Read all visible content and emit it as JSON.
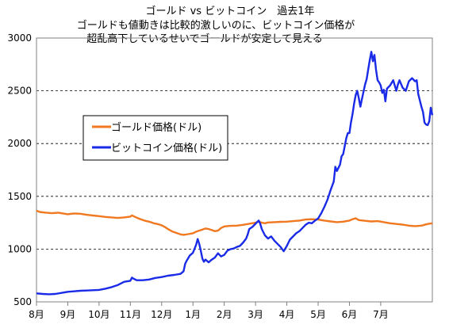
{
  "chart_data": {
    "type": "line",
    "title_lines": [
      "ゴールド vs ビットコイン　過去1年",
      "ゴールドも値動きは比較的激しいのに、ビットコイン価格が",
      "超乱高下しているせいでゴールドが安定して見える"
    ],
    "xlabel": "",
    "ylabel": "",
    "ylim": [
      500,
      3000
    ],
    "yticks": [
      500,
      1000,
      1500,
      2000,
      2500,
      3000
    ],
    "x_range": [
      0,
      12.65
    ],
    "xticks": [
      {
        "label": "8月",
        "x": 0
      },
      {
        "label": "9月",
        "x": 1
      },
      {
        "label": "10月",
        "x": 2
      },
      {
        "label": "11月",
        "x": 3
      },
      {
        "label": "12月",
        "x": 4
      },
      {
        "label": "1月",
        "x": 5
      },
      {
        "label": "2月",
        "x": 6
      },
      {
        "label": "3月",
        "x": 7
      },
      {
        "label": "4月",
        "x": 8
      },
      {
        "label": "5月",
        "x": 9
      },
      {
        "label": "6月",
        "x": 10
      },
      {
        "label": "7月",
        "x": 11
      }
    ],
    "grid": {
      "horizontal": true,
      "style": "dashed"
    },
    "legend_position": "left-middle",
    "series": [
      {
        "name": "ゴールド価格(ドル)",
        "color": "#F07820",
        "points": [
          [
            0,
            1365
          ],
          [
            0.1,
            1352
          ],
          [
            0.3,
            1345
          ],
          [
            0.5,
            1340
          ],
          [
            0.7,
            1345
          ],
          [
            0.9,
            1335
          ],
          [
            1,
            1330
          ],
          [
            1.2,
            1338
          ],
          [
            1.4,
            1335
          ],
          [
            1.6,
            1325
          ],
          [
            1.8,
            1318
          ],
          [
            2,
            1312
          ],
          [
            2.2,
            1305
          ],
          [
            2.4,
            1300
          ],
          [
            2.6,
            1295
          ],
          [
            2.8,
            1300
          ],
          [
            3,
            1308
          ],
          [
            3.05,
            1320
          ],
          [
            3.15,
            1305
          ],
          [
            3.3,
            1285
          ],
          [
            3.45,
            1270
          ],
          [
            3.6,
            1260
          ],
          [
            3.75,
            1245
          ],
          [
            3.9,
            1235
          ],
          [
            4,
            1225
          ],
          [
            4.1,
            1210
          ],
          [
            4.2,
            1190
          ],
          [
            4.35,
            1165
          ],
          [
            4.5,
            1150
          ],
          [
            4.6,
            1140
          ],
          [
            4.7,
            1135
          ],
          [
            4.85,
            1142
          ],
          [
            5,
            1150
          ],
          [
            5.1,
            1165
          ],
          [
            5.2,
            1175
          ],
          [
            5.3,
            1185
          ],
          [
            5.4,
            1195
          ],
          [
            5.5,
            1190
          ],
          [
            5.6,
            1180
          ],
          [
            5.7,
            1170
          ],
          [
            5.8,
            1175
          ],
          [
            5.9,
            1200
          ],
          [
            6,
            1215
          ],
          [
            6.2,
            1220
          ],
          [
            6.4,
            1222
          ],
          [
            6.6,
            1230
          ],
          [
            6.8,
            1240
          ],
          [
            7,
            1250
          ],
          [
            7.1,
            1262
          ],
          [
            7.2,
            1250
          ],
          [
            7.3,
            1245
          ],
          [
            7.4,
            1252
          ],
          [
            7.6,
            1255
          ],
          [
            7.8,
            1258
          ],
          [
            8,
            1260
          ],
          [
            8.2,
            1265
          ],
          [
            8.4,
            1270
          ],
          [
            8.6,
            1280
          ],
          [
            8.8,
            1283
          ],
          [
            9,
            1280
          ],
          [
            9.2,
            1270
          ],
          [
            9.4,
            1262
          ],
          [
            9.6,
            1255
          ],
          [
            9.8,
            1260
          ],
          [
            10,
            1270
          ],
          [
            10.1,
            1283
          ],
          [
            10.2,
            1292
          ],
          [
            10.3,
            1275
          ],
          [
            10.5,
            1268
          ],
          [
            10.7,
            1262
          ],
          [
            10.9,
            1265
          ],
          [
            11.1,
            1255
          ],
          [
            11.3,
            1245
          ],
          [
            11.5,
            1238
          ],
          [
            11.7,
            1232
          ],
          [
            11.9,
            1222
          ],
          [
            12.1,
            1218
          ],
          [
            12.3,
            1222
          ],
          [
            12.5,
            1238
          ],
          [
            12.65,
            1245
          ]
        ]
      },
      {
        "name": "ビットコイン価格(ドル)",
        "color": "#1A2BE8",
        "points": [
          [
            0,
            580
          ],
          [
            0.2,
            575
          ],
          [
            0.4,
            572
          ],
          [
            0.6,
            575
          ],
          [
            0.8,
            585
          ],
          [
            1,
            595
          ],
          [
            1.2,
            600
          ],
          [
            1.4,
            605
          ],
          [
            1.6,
            607
          ],
          [
            1.8,
            610
          ],
          [
            2,
            613
          ],
          [
            2.2,
            625
          ],
          [
            2.4,
            640
          ],
          [
            2.6,
            660
          ],
          [
            2.8,
            690
          ],
          [
            3,
            700
          ],
          [
            3.05,
            730
          ],
          [
            3.1,
            720
          ],
          [
            3.2,
            705
          ],
          [
            3.4,
            705
          ],
          [
            3.6,
            712
          ],
          [
            3.8,
            727
          ],
          [
            4,
            735
          ],
          [
            4.2,
            748
          ],
          [
            4.4,
            755
          ],
          [
            4.6,
            765
          ],
          [
            4.7,
            790
          ],
          [
            4.75,
            860
          ],
          [
            4.8,
            890
          ],
          [
            4.9,
            940
          ],
          [
            5,
            965
          ],
          [
            5.1,
            1040
          ],
          [
            5.15,
            1095
          ],
          [
            5.2,
            1050
          ],
          [
            5.25,
            985
          ],
          [
            5.3,
            910
          ],
          [
            5.35,
            880
          ],
          [
            5.4,
            900
          ],
          [
            5.5,
            875
          ],
          [
            5.6,
            900
          ],
          [
            5.7,
            920
          ],
          [
            5.8,
            960
          ],
          [
            5.9,
            930
          ],
          [
            6,
            945
          ],
          [
            6.1,
            985
          ],
          [
            6.2,
            1000
          ],
          [
            6.3,
            1005
          ],
          [
            6.4,
            1020
          ],
          [
            6.5,
            1030
          ],
          [
            6.6,
            1060
          ],
          [
            6.7,
            1100
          ],
          [
            6.75,
            1140
          ],
          [
            6.8,
            1190
          ],
          [
            6.9,
            1210
          ],
          [
            7,
            1240
          ],
          [
            7.1,
            1270
          ],
          [
            7.15,
            1240
          ],
          [
            7.2,
            1190
          ],
          [
            7.3,
            1130
          ],
          [
            7.4,
            1100
          ],
          [
            7.5,
            1120
          ],
          [
            7.6,
            1080
          ],
          [
            7.7,
            1050
          ],
          [
            7.8,
            1020
          ],
          [
            7.9,
            980
          ],
          [
            8,
            1030
          ],
          [
            8.1,
            1090
          ],
          [
            8.2,
            1120
          ],
          [
            8.3,
            1150
          ],
          [
            8.4,
            1170
          ],
          [
            8.5,
            1200
          ],
          [
            8.6,
            1230
          ],
          [
            8.7,
            1250
          ],
          [
            8.8,
            1245
          ],
          [
            8.9,
            1270
          ],
          [
            9,
            1290
          ],
          [
            9.1,
            1340
          ],
          [
            9.2,
            1400
          ],
          [
            9.3,
            1470
          ],
          [
            9.4,
            1560
          ],
          [
            9.5,
            1640
          ],
          [
            9.55,
            1780
          ],
          [
            9.6,
            1740
          ],
          [
            9.7,
            1800
          ],
          [
            9.75,
            1880
          ],
          [
            9.8,
            1900
          ],
          [
            9.9,
            2050
          ],
          [
            9.95,
            2100
          ],
          [
            10,
            2100
          ],
          [
            10.05,
            2200
          ],
          [
            10.1,
            2280
          ],
          [
            10.15,
            2380
          ],
          [
            10.2,
            2460
          ],
          [
            10.25,
            2500
          ],
          [
            10.3,
            2430
          ],
          [
            10.35,
            2350
          ],
          [
            10.4,
            2420
          ],
          [
            10.45,
            2490
          ],
          [
            10.5,
            2560
          ],
          [
            10.55,
            2610
          ],
          [
            10.6,
            2700
          ],
          [
            10.65,
            2790
          ],
          [
            10.7,
            2870
          ],
          [
            10.75,
            2780
          ],
          [
            10.8,
            2840
          ],
          [
            10.85,
            2700
          ],
          [
            10.9,
            2600
          ],
          [
            10.95,
            2580
          ],
          [
            11,
            2550
          ],
          [
            11.05,
            2480
          ],
          [
            11.1,
            2510
          ],
          [
            11.15,
            2400
          ],
          [
            11.2,
            2520
          ],
          [
            11.3,
            2550
          ],
          [
            11.4,
            2600
          ],
          [
            11.5,
            2500
          ],
          [
            11.55,
            2560
          ],
          [
            11.6,
            2600
          ],
          [
            11.7,
            2530
          ],
          [
            11.8,
            2500
          ],
          [
            11.9,
            2590
          ],
          [
            12,
            2620
          ],
          [
            12.1,
            2590
          ],
          [
            12.15,
            2600
          ],
          [
            12.2,
            2470
          ],
          [
            12.3,
            2350
          ],
          [
            12.35,
            2300
          ],
          [
            12.4,
            2200
          ],
          [
            12.45,
            2180
          ],
          [
            12.5,
            2175
          ],
          [
            12.55,
            2210
          ],
          [
            12.6,
            2340
          ],
          [
            12.65,
            2270
          ]
        ]
      }
    ]
  }
}
